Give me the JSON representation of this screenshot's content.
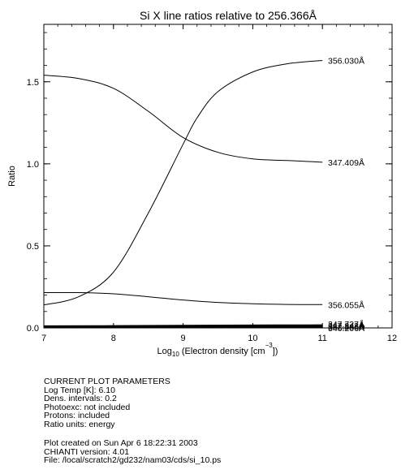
{
  "chart_data": {
    "type": "line",
    "title": "Si X line ratios relative to 256.366Å",
    "xlabel_main": "Log",
    "xlabel_sub": "10",
    "xlabel_rest": " (Electron density [cm",
    "xlabel_sup": "−3",
    "xlabel_end": "])",
    "ylabel": "Ratio",
    "xlim": [
      7,
      12
    ],
    "ylim": [
      0,
      1.85
    ],
    "x_ticks": [
      7,
      8,
      9,
      10,
      11,
      12
    ],
    "x_tick_labels": [
      "7",
      "8",
      "9",
      "10",
      "11",
      "12"
    ],
    "y_ticks": [
      0,
      0.5,
      1.0,
      1.5
    ],
    "y_tick_labels": [
      "0.0",
      "0.5",
      "1.0",
      "1.5"
    ],
    "series": [
      {
        "name": "356.030Å",
        "x": [
          7.0,
          7.5,
          8.0,
          8.5,
          9.0,
          9.2,
          9.5,
          10.0,
          10.5,
          11.0
        ],
        "y": [
          0.14,
          0.19,
          0.34,
          0.7,
          1.12,
          1.28,
          1.44,
          1.56,
          1.61,
          1.63
        ]
      },
      {
        "name": "347.409Å",
        "x": [
          7.0,
          7.5,
          8.0,
          8.5,
          9.0,
          9.5,
          10.0,
          10.5,
          11.0
        ],
        "y": [
          1.54,
          1.52,
          1.46,
          1.32,
          1.16,
          1.07,
          1.03,
          1.02,
          1.01
        ]
      },
      {
        "name": "356.055Å",
        "x": [
          7.0,
          7.5,
          8.0,
          8.5,
          9.0,
          9.5,
          10.0,
          10.5,
          11.0
        ],
        "y": [
          0.215,
          0.215,
          0.208,
          0.19,
          0.17,
          0.155,
          0.147,
          0.143,
          0.142
        ]
      },
      {
        "name": "347.727Å",
        "x": [
          7.0,
          8.0,
          9.0,
          10.0,
          11.0
        ],
        "y": [
          0.012,
          0.013,
          0.015,
          0.017,
          0.018
        ]
      },
      {
        "name": "347.843Å",
        "x": [
          7.0,
          8.0,
          9.0,
          10.0,
          11.0
        ],
        "y": [
          0.009,
          0.01,
          0.011,
          0.012,
          0.012
        ]
      },
      {
        "name": "352.386Å",
        "x": [
          7.0,
          8.0,
          9.0,
          10.0,
          11.0
        ],
        "y": [
          0.006,
          0.006,
          0.007,
          0.007,
          0.007
        ]
      },
      {
        "name": "346.206Å",
        "x": [
          7.0,
          8.0,
          9.0,
          10.0,
          11.0
        ],
        "y": [
          0.003,
          0.003,
          0.004,
          0.004,
          0.004
        ]
      }
    ],
    "label_values": [
      1.63,
      1.01,
      0.142,
      0.025,
      0.015,
      0.007,
      0.0
    ],
    "grid": false
  },
  "params": {
    "heading": "CURRENT PLOT PARAMETERS",
    "log_temp": "Log Temp [K]:  6.10",
    "dens_intervals": "Dens. intervals: 0.2",
    "photoexc": "Photoexc: not included",
    "protons": "Protons: included",
    "ratio_units": "Ratio units: energy"
  },
  "footer": {
    "created": "Plot created on Sun Apr  6 18:22:31 2003",
    "chianti": "CHIANTI version: 4.01",
    "file": "File: /local/scratch2/gd232/nam03/cds/si_10.ps"
  }
}
